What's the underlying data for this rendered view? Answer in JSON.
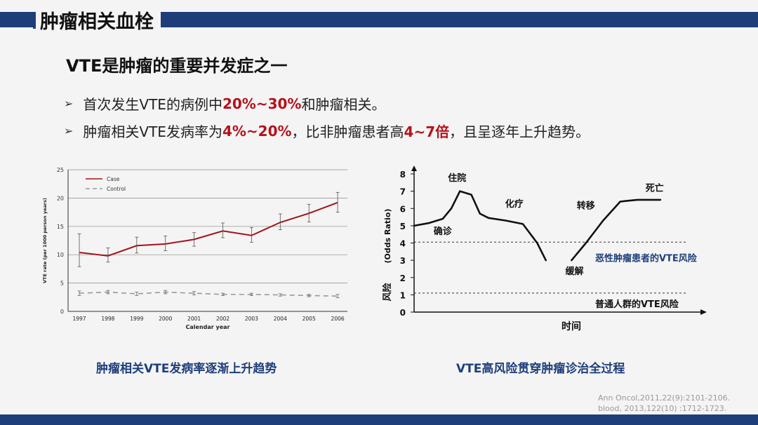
{
  "slide": {
    "title": "肿瘤相关血栓",
    "subtitle": "VTE是肿瘤的重要并发症之一",
    "bullet1": {
      "pre": "首次发生VTE的病例中",
      "hl": "20%~30%",
      "post": "和肿瘤相关。"
    },
    "bullet2": {
      "pre": "肿瘤相关VTE发病率为",
      "hl1": "4%~20%",
      "mid": "，比非肿瘤患者高",
      "hl2": "4~7倍",
      "post": "，且呈逐年上升趋势。"
    },
    "caption_left": "肿瘤相关VTE发病率逐渐上升趋势",
    "caption_right": "VTE高风险贯穿肿瘤诊治全过程",
    "ref1": "Ann Oncol,2011,22(9):2101-2106.",
    "ref2": "blood, 2013,122(10) :1712-1723.",
    "colors": {
      "brand_blue": "#1e3e7a",
      "highlight_red": "#b5121b",
      "case_line": "#a3121c",
      "control_line": "#999999"
    }
  },
  "chart_data": [
    {
      "type": "line",
      "x": [
        "1997",
        "1998",
        "1999",
        "2000",
        "2001",
        "2002",
        "2003",
        "2004",
        "2005",
        "2006"
      ],
      "xlabel": "Calendar year",
      "ylabel": "VTE rate (per 1000 person years)",
      "ylim": [
        0,
        25
      ],
      "yticks": [
        0,
        5,
        10,
        15,
        20,
        25
      ],
      "grid": "horizontal",
      "legend": "top-left",
      "series": [
        {
          "name": "Case",
          "values": [
            10.4,
            9.8,
            11.6,
            11.9,
            12.7,
            14.2,
            13.4,
            15.7,
            17.3,
            19.2
          ],
          "err_low": [
            7.9,
            8.7,
            10.3,
            10.7,
            11.5,
            13.0,
            12.2,
            14.4,
            15.8,
            17.5
          ],
          "err_high": [
            13.7,
            11.2,
            13.1,
            13.3,
            13.9,
            15.6,
            14.8,
            17.2,
            18.9,
            21.0
          ]
        },
        {
          "name": "Control",
          "values": [
            3.2,
            3.4,
            3.1,
            3.4,
            3.2,
            3.0,
            3.0,
            2.9,
            2.8,
            2.7
          ],
          "err_low": [
            2.8,
            3.1,
            2.8,
            3.1,
            2.9,
            2.8,
            2.8,
            2.7,
            2.6,
            2.4
          ],
          "err_high": [
            3.6,
            3.7,
            3.4,
            3.7,
            3.5,
            3.2,
            3.2,
            3.1,
            3.0,
            3.0
          ]
        }
      ]
    },
    {
      "type": "line",
      "xlabel": "时间",
      "ylabel_cn": "风险",
      "ylabel_en": "(Odds Ratio)",
      "ylim": [
        0,
        8
      ],
      "yticks": [
        0,
        1,
        2,
        3,
        4,
        5,
        6,
        7,
        8
      ],
      "series": [
        {
          "segment": 1,
          "x": [
            0,
            0.05,
            0.1,
            0.13,
            0.16,
            0.2,
            0.23,
            0.26,
            0.32,
            0.38,
            0.43,
            0.46
          ],
          "values": [
            5.0,
            5.15,
            5.4,
            6.0,
            7.0,
            6.8,
            5.7,
            5.45,
            5.3,
            5.1,
            4.0,
            3.0
          ]
        },
        {
          "segment": 2,
          "x": [
            0.55,
            0.6,
            0.66,
            0.72,
            0.78,
            0.86
          ],
          "values": [
            3.0,
            4.0,
            5.3,
            6.4,
            6.5,
            6.5
          ]
        }
      ],
      "reference_lines": [
        {
          "label": "恶性肿瘤患者的VTE风险",
          "y": 4.05
        },
        {
          "label": "普通人群的VTE风险",
          "y": 1.1
        }
      ],
      "annotations": [
        {
          "text": "住院",
          "x": 0.15,
          "y": 7.6
        },
        {
          "text": "化疗",
          "x": 0.35,
          "y": 6.1
        },
        {
          "text": "转移",
          "x": 0.6,
          "y": 6.0
        },
        {
          "text": "死亡",
          "x": 0.84,
          "y": 7.0
        },
        {
          "text": "确诊",
          "x": 0.1,
          "y": 4.5
        },
        {
          "text": "缓解",
          "x": 0.56,
          "y": 2.2
        }
      ]
    }
  ]
}
